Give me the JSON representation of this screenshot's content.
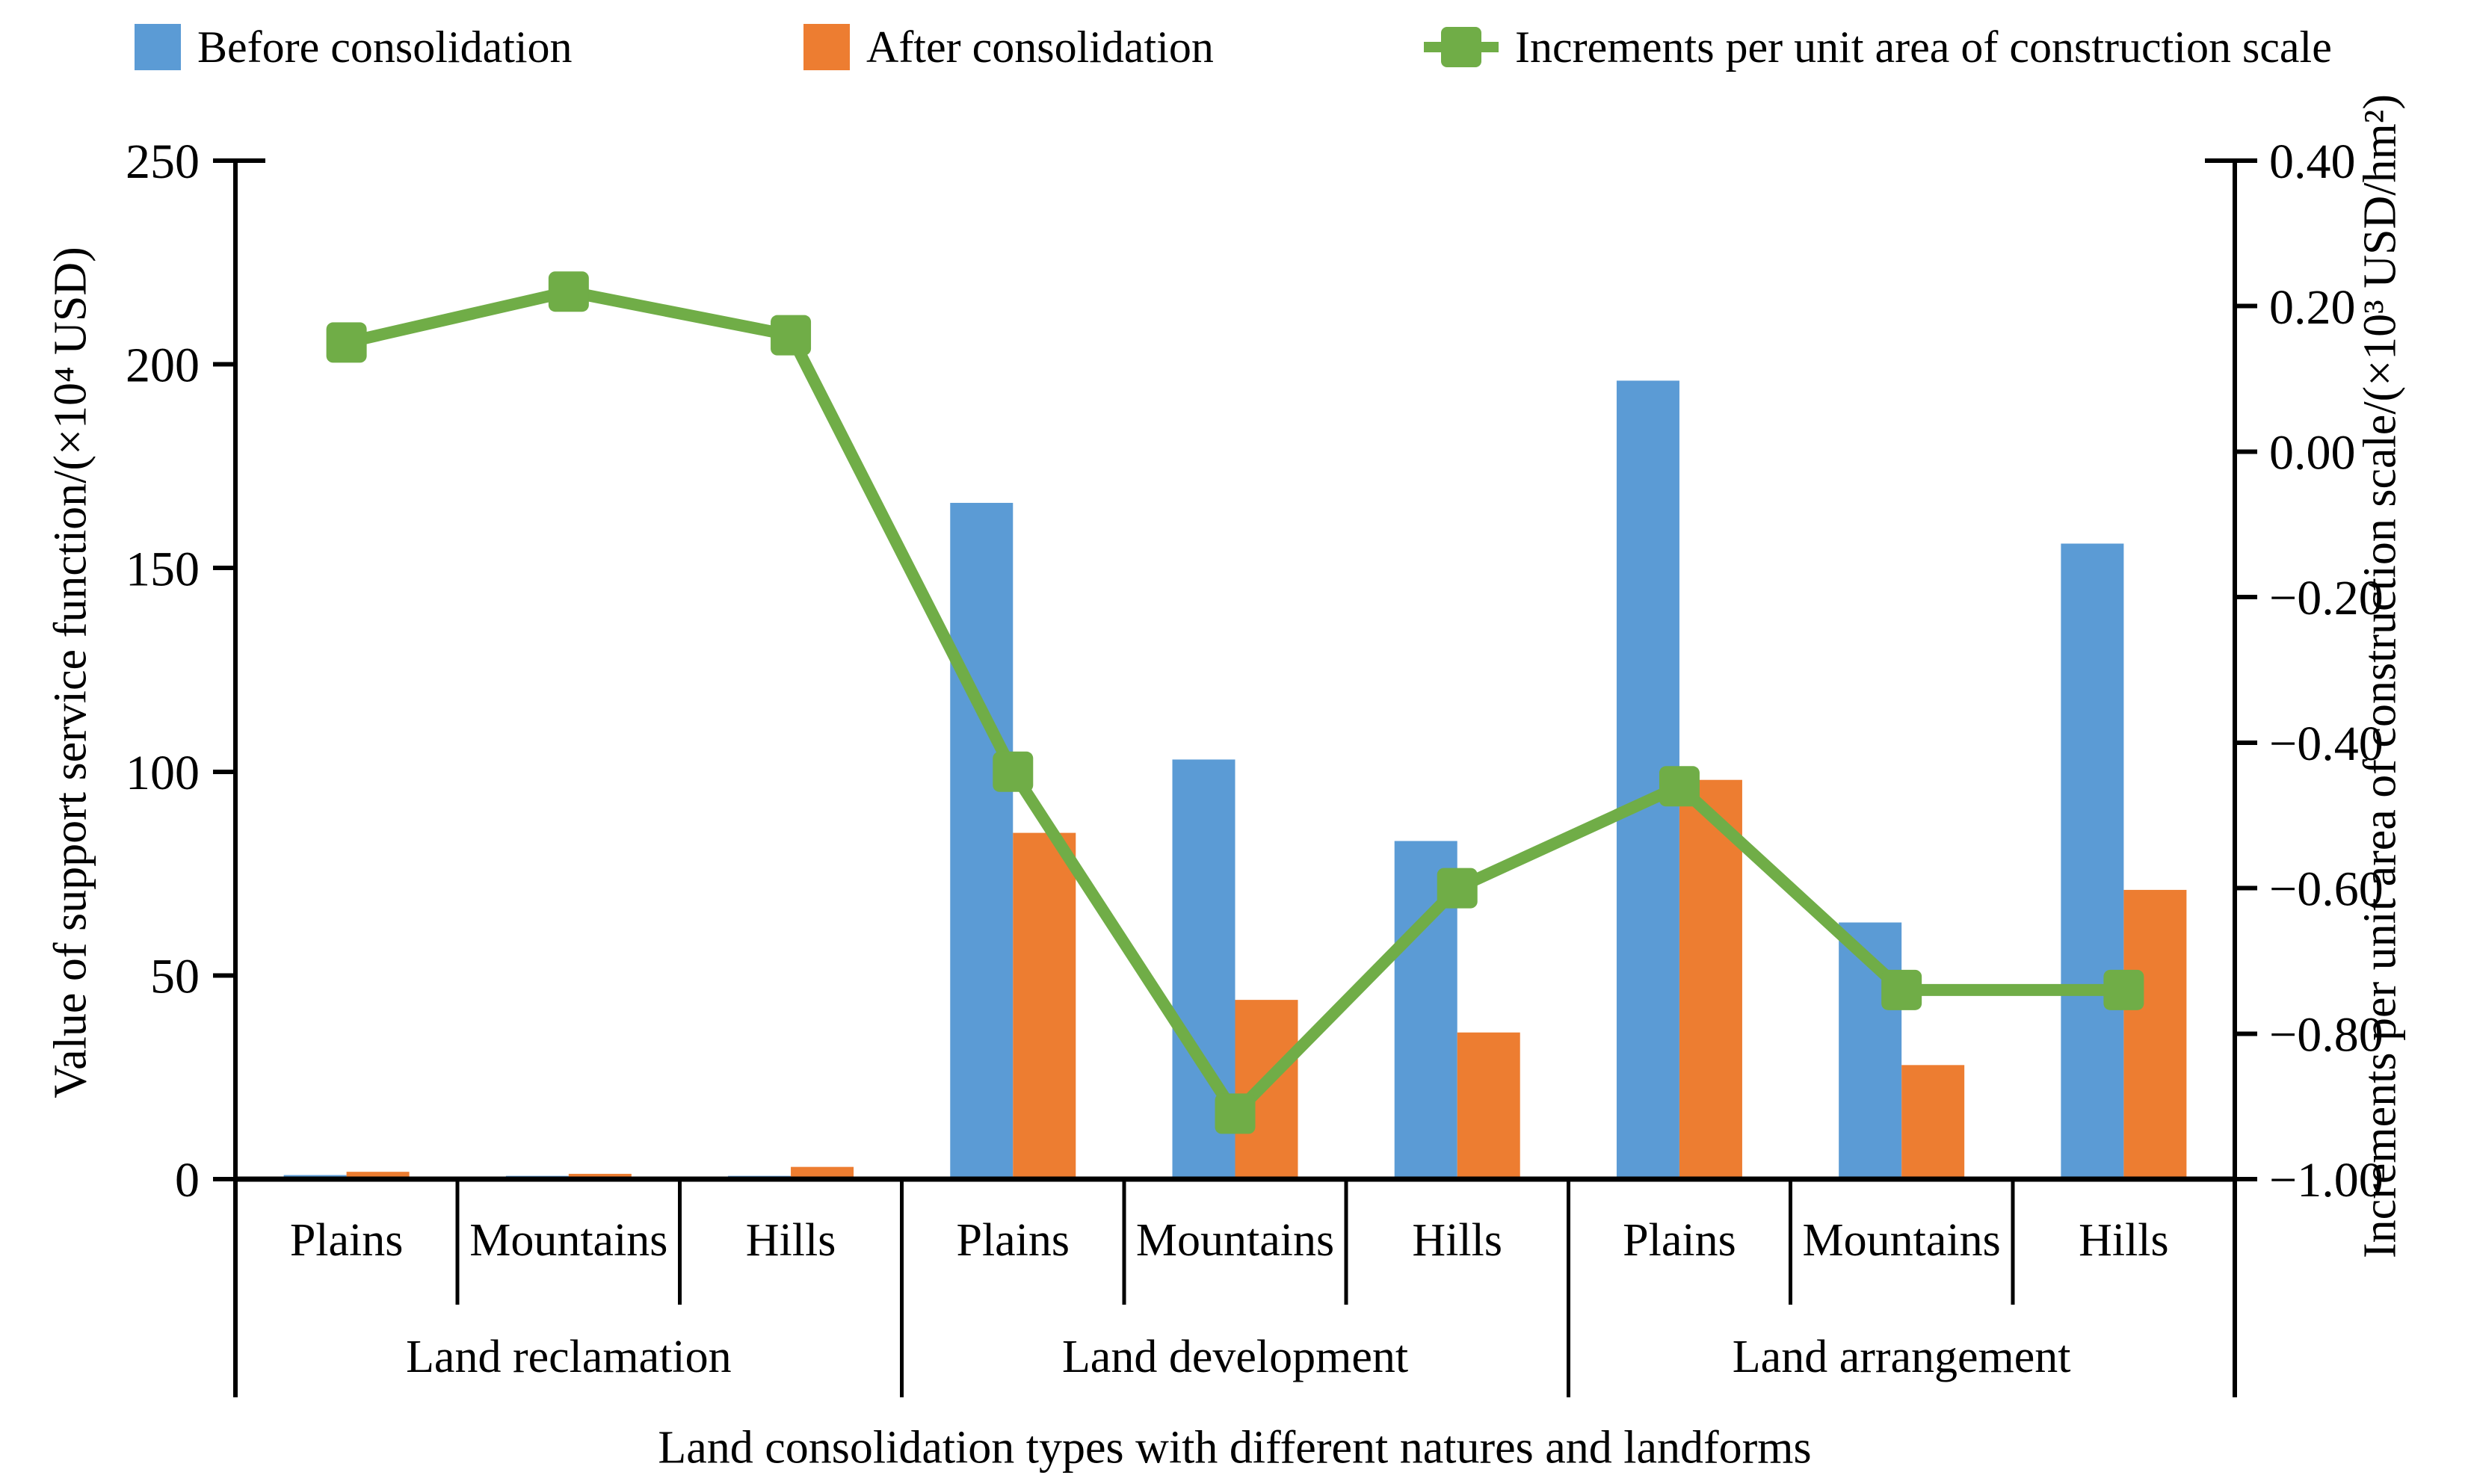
{
  "figure": {
    "background": "#ffffff",
    "axis_color": "#000000",
    "legend": [
      {
        "label": "Before consolidation",
        "swatch": "square",
        "color": "#5B9BD5"
      },
      {
        "label": "After consolidation",
        "swatch": "square",
        "color": "#ED7D31"
      },
      {
        "label": "Increments per unit area of construction scale",
        "swatch": "line-square",
        "color": "#70AD47"
      }
    ]
  },
  "chart_data": {
    "type": "bar+line",
    "title": "",
    "xlabel": "Land consolidation types with different natures and landforms",
    "ylabel_left": "Value of support service function/(×10⁴ USD)",
    "ylabel_right": "Increments per unit area of construction scale/(×10³ USD/hm²)",
    "groups": [
      "Land reclamation",
      "Land development",
      "Land arrangement"
    ],
    "categories": [
      "Plains",
      "Mountains",
      "Hills",
      "Plains",
      "Mountains",
      "Hills",
      "Plains",
      "Mountains",
      "Hills"
    ],
    "category_group_index": [
      0,
      0,
      0,
      1,
      1,
      1,
      2,
      2,
      2
    ],
    "series": [
      {
        "name": "Before consolidation",
        "type": "bar",
        "axis": "left",
        "color": "#5B9BD5",
        "values": [
          1.0,
          0.8,
          0.8,
          166,
          103,
          83,
          196,
          63,
          156
        ]
      },
      {
        "name": "After consolidation",
        "type": "bar",
        "axis": "left",
        "color": "#ED7D31",
        "values": [
          1.8,
          1.3,
          3.0,
          85,
          44,
          36,
          98,
          28,
          71
        ]
      },
      {
        "name": "Increments per unit area of construction scale",
        "type": "line",
        "axis": "right",
        "color": "#70AD47",
        "marker": "square",
        "values": [
          0.15,
          0.22,
          0.16,
          -0.44,
          -0.91,
          -0.6,
          -0.46,
          -0.74,
          -0.74
        ]
      }
    ],
    "left_axis": {
      "min": 0,
      "max": 250,
      "ticks": [
        0,
        50,
        100,
        150,
        200,
        250
      ],
      "tick_labels": [
        "0",
        "50",
        "100",
        "150",
        "200",
        "250"
      ]
    },
    "right_axis": {
      "min": -1.0,
      "max": 0.4,
      "ticks": [
        0.4,
        0.2,
        0.0,
        -0.2,
        -0.4,
        -0.6,
        -0.8,
        -1.0
      ],
      "tick_labels": [
        "0.40",
        "0.20",
        "0.00",
        "−0.20",
        "−0.40",
        "−0.60",
        "−0.80",
        "−1.00"
      ]
    },
    "grid": false,
    "legend_position": "top"
  }
}
